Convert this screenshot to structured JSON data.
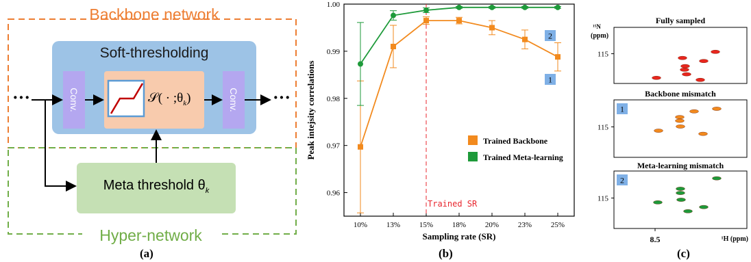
{
  "panel_a": {
    "backbone_title": "Backbone network",
    "soft_threshold_title": "Soft-thresholding",
    "conv_left": "Conv.",
    "conv_right": "Conv.",
    "operator_label": "𝒮( · ;θ",
    "operator_sub": "k",
    "operator_close": ")",
    "meta_label": "Meta threshold θ",
    "meta_sub": "k",
    "dots_left": "···",
    "dots_right": "···",
    "hyper_title": "Hyper-network",
    "caption": "(a)",
    "colors": {
      "orange": "#ED7D31",
      "green": "#70AD47",
      "blue_box": "#9DC3E6",
      "conv": "#B4A7F0",
      "op": "#F8CBAD",
      "meta": "#C5E0B4"
    }
  },
  "panel_b": {
    "caption": "(b)",
    "trained_sr_label": "Trained SR",
    "badge_1": "1",
    "badge_2": "2"
  },
  "chart_data": {
    "type": "line",
    "xlabel": "Sampling rate (SR)",
    "ylabel": "Peak intejsity correlations",
    "categories": [
      "10%",
      "13%",
      "15%",
      "18%",
      "20%",
      "23%",
      "25%"
    ],
    "ylim": [
      0.955,
      1.0
    ],
    "yticks": [
      "0.96",
      "0.97",
      "0.98",
      "0.99",
      "1.00"
    ],
    "legend_position": "center-right",
    "series": [
      {
        "name": "Trained Backbone",
        "color": "#F28A1E",
        "values": [
          0.9697,
          0.991,
          0.9965,
          0.9965,
          0.995,
          0.9925,
          0.9888
        ],
        "err": [
          0.014,
          0.0045,
          0.0008,
          0.0007,
          0.0015,
          0.002,
          0.003
        ]
      },
      {
        "name": "Trained Meta-learning",
        "color": "#1E9A3A",
        "values": [
          0.9873,
          0.9976,
          0.9987,
          0.9993,
          0.9993,
          0.9993,
          0.9993
        ],
        "err": [
          0.0088,
          0.001,
          0.0005,
          0.0002,
          0.0002,
          0.0002,
          0.0002
        ]
      }
    ]
  },
  "panel_c": {
    "caption": "(c)",
    "n_label": "¹⁵N",
    "n_unit": "(ppm)",
    "panels": [
      {
        "title": "Fully sampled",
        "tick": "115",
        "badge": ""
      },
      {
        "title": "Backbone mismatch",
        "tick": "115",
        "badge": "1"
      },
      {
        "title": "Meta-learning mismatch",
        "tick": "115",
        "badge": "2"
      }
    ],
    "x_tick": "8.5",
    "h_label": "¹H (ppm)",
    "peak_colors": [
      "#E8261E",
      "#F28A1E",
      "#1E9A3A"
    ]
  }
}
